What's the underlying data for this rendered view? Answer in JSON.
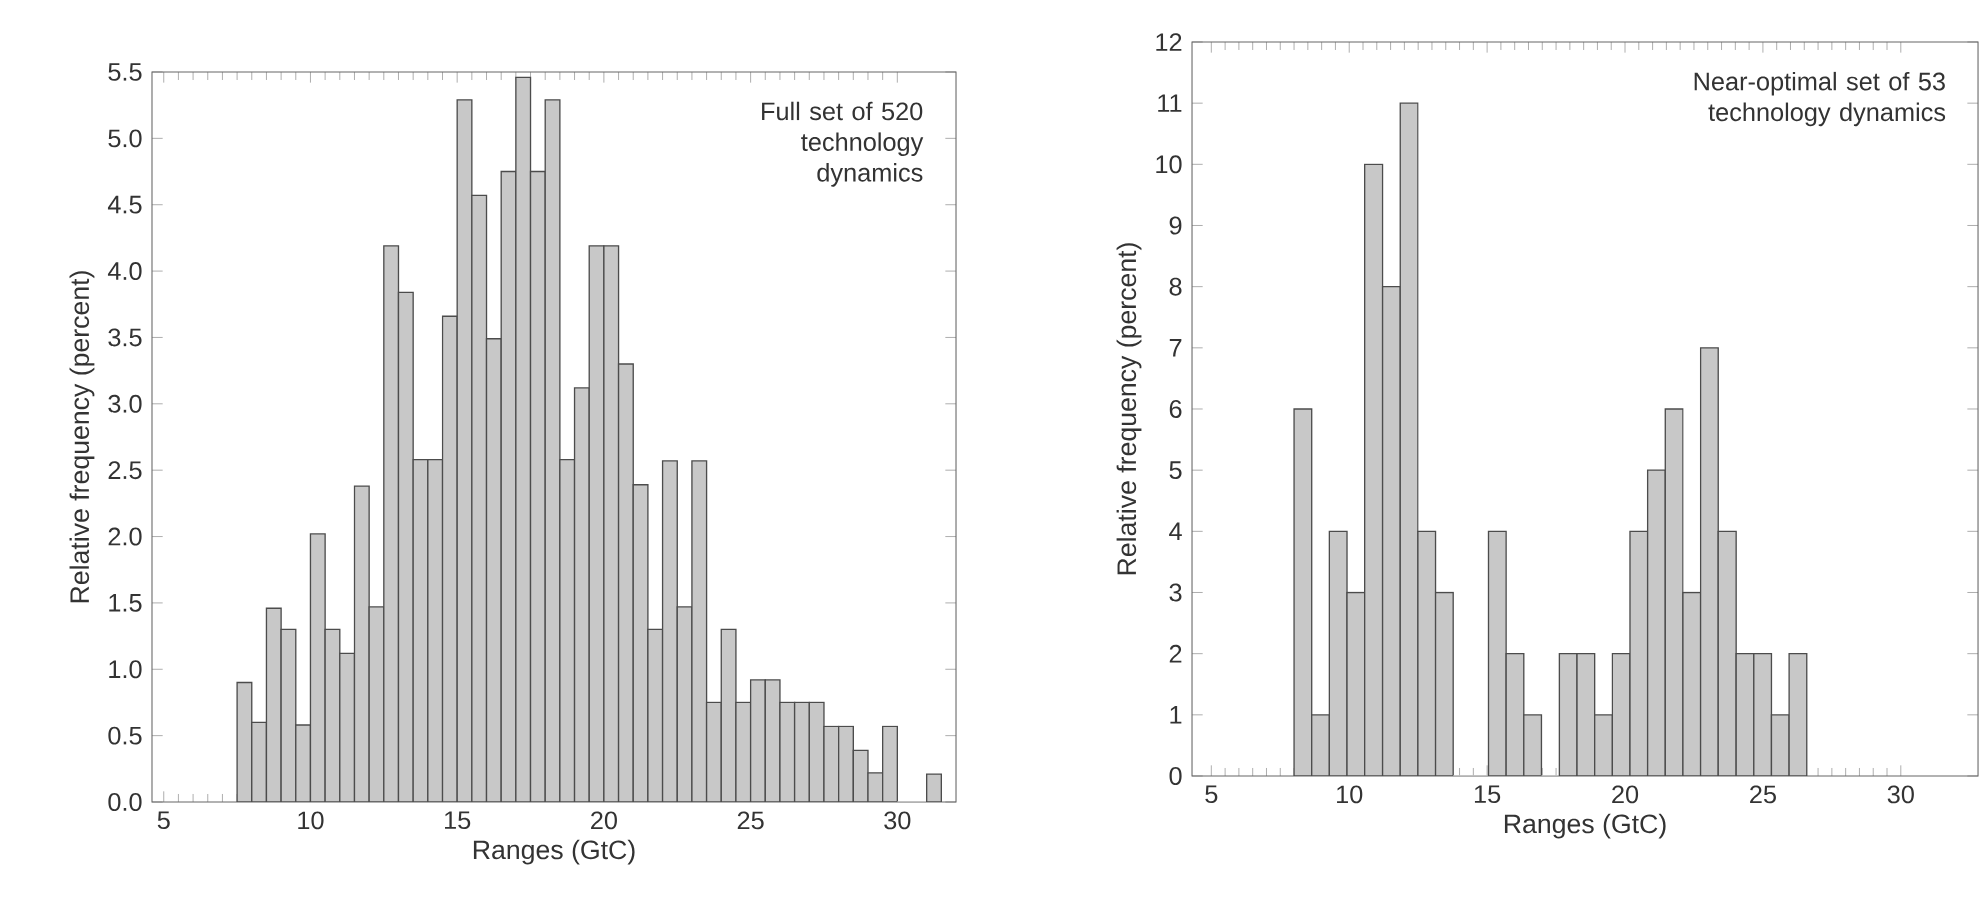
{
  "chart_data": [
    {
      "type": "histogram",
      "xlabel": "Ranges (GtC)",
      "ylabel": "Relative frequency (percent)",
      "annotations": [
        "Full set of 520 technology dynamics"
      ],
      "color": "#c8c8c8",
      "bins": [
        7.5,
        8,
        8.5,
        9,
        9.5,
        10,
        10.5,
        11,
        11.5,
        12,
        12.5,
        13,
        13.5,
        14,
        14.5,
        15,
        15.5,
        16,
        16.5,
        17,
        17.5,
        18,
        18.5,
        19,
        19.5,
        20,
        20.5,
        21,
        21.5,
        22,
        22.5,
        23,
        23.5,
        24,
        24.5,
        25,
        25.5,
        26,
        26.5,
        27,
        27.5,
        28,
        28.5,
        29,
        29.5,
        30,
        30.5,
        31,
        31.5
      ],
      "values": [
        0.9,
        0.6,
        1.46,
        1.3,
        0.58,
        2.02,
        1.3,
        1.12,
        2.38,
        1.47,
        4.19,
        3.84,
        2.58,
        2.58,
        3.66,
        5.29,
        4.57,
        3.49,
        4.75,
        5.46,
        4.75,
        5.29,
        2.58,
        3.12,
        4.19,
        4.19,
        3.3,
        2.39,
        1.3,
        2.57,
        1.47,
        2.57,
        0.75,
        1.3,
        0.75,
        0.92,
        0.92,
        0.75,
        0.75,
        0.75,
        0.57,
        0.57,
        0.39,
        0.22,
        0.57,
        0,
        0,
        0.21
      ],
      "xlim": [
        4.6,
        32
      ],
      "ylim": [
        0,
        5.5
      ],
      "xticks": [
        5,
        10,
        15,
        20,
        25,
        30
      ],
      "yticks": [
        {
          "value": 0,
          "label": "0.0"
        },
        0.5,
        {
          "value": 1,
          "label": "1.0"
        },
        1.5,
        {
          "value": 2,
          "label": "2.0"
        },
        2.5,
        {
          "value": 3,
          "label": "3.0"
        },
        3.5,
        {
          "value": 4,
          "label": "4.0"
        },
        4.5,
        {
          "value": 5,
          "label": "5.0"
        },
        5.5
      ]
    },
    {
      "type": "histogram",
      "xlabel": "Ranges (GtC)",
      "ylabel": "Relative frequency (percent)",
      "annotations": [
        "Near-optimal set of 53 technology dynamics"
      ],
      "color": "#c8c8c8",
      "bins": [
        8.0,
        8.64,
        9.28,
        9.92,
        10.56,
        11.21,
        11.85,
        12.49,
        13.13,
        13.77,
        14.41,
        15.05,
        15.69,
        16.33,
        16.97,
        17.62,
        18.26,
        18.9,
        19.54,
        20.18,
        20.82,
        21.46,
        22.1,
        22.74,
        23.38,
        24.03,
        24.67,
        25.31,
        25.95,
        26.59
      ],
      "values": [
        6,
        1,
        4,
        3,
        10,
        8,
        11,
        4,
        3,
        0,
        0,
        4,
        2,
        1,
        0,
        2,
        2,
        1,
        2,
        4,
        5,
        6,
        3,
        7,
        4,
        2,
        2,
        1,
        2
      ],
      "xlim": [
        4.3,
        32.8
      ],
      "ylim": [
        0,
        12
      ],
      "xticks": [
        5,
        10,
        15,
        20,
        25,
        30
      ],
      "yticks": [
        0,
        1,
        2,
        3,
        4,
        5,
        6,
        7,
        8,
        9,
        10,
        11,
        12
      ]
    }
  ]
}
